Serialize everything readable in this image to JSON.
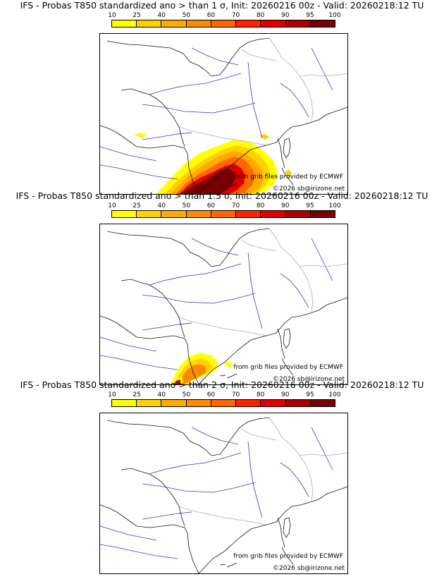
{
  "panels": [
    {
      "title": "IFS - Probas T850  standardized ano > than 1 σ, Init: 20260216 00z - Valid: 20260218:12 TU",
      "source": "from grib files provided by ECMWF",
      "copyright": "©2026 sb@irizone.net"
    },
    {
      "title": "IFS - Probas T850  standardized ano > than 1.5 σ, Init: 20260216 00z - Valid: 20260218:12 TU",
      "source": "from grib files provided by ECMWF",
      "copyright": "©2026 sb@irizone.net"
    },
    {
      "title": "IFS - Probas T850  standardized ano > than 2 σ, Init: 20260216 00z - Valid: 20260218:12 TU",
      "source": "from grib files provided by ECMWF",
      "copyright": "©2026 sb@irizone.net"
    }
  ],
  "colorbar": {
    "ticks": [
      "10",
      "25",
      "40",
      "50",
      "60",
      "70",
      "80",
      "90",
      "95",
      "100"
    ],
    "colors": [
      "#ffff00",
      "#ffd000",
      "#ffaa00",
      "#ff8800",
      "#ff6600",
      "#ff2200",
      "#dd0000",
      "#aa0000",
      "#770000"
    ]
  }
}
